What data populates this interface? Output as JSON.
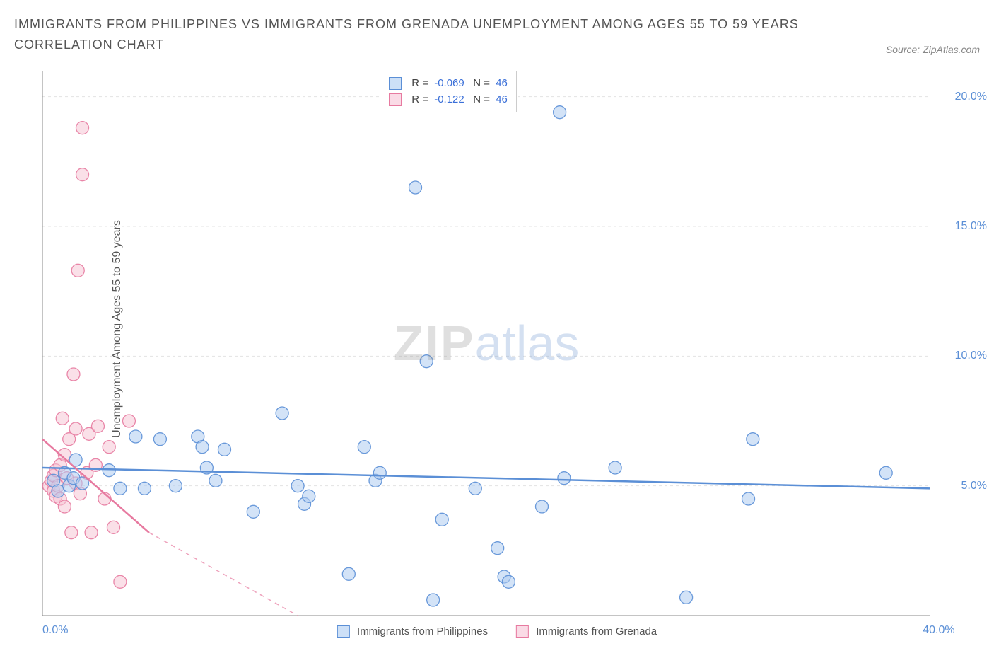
{
  "title": "IMMIGRANTS FROM PHILIPPINES VS IMMIGRANTS FROM GRENADA UNEMPLOYMENT AMONG AGES 55 TO 59 YEARS CORRELATION CHART",
  "source": "Source: ZipAtlas.com",
  "watermark_zip": "ZIP",
  "watermark_atlas": "atlas",
  "chart": {
    "type": "scatter",
    "background_color": "#ffffff",
    "grid_color": "#e3e3e3",
    "axis_color": "#888888",
    "tick_label_color": "#5b8fd6",
    "y_axis_label": "Unemployment Among Ages 55 to 59 years",
    "y_axis_label_color": "#555555",
    "xlim": [
      0,
      40
    ],
    "ylim": [
      0,
      21
    ],
    "x_ticks": [
      0,
      40
    ],
    "x_tick_labels": [
      "0.0%",
      "40.0%"
    ],
    "y_ticks": [
      5,
      10,
      15,
      20
    ],
    "y_tick_labels": [
      "5.0%",
      "10.0%",
      "15.0%",
      "20.0%"
    ],
    "marker_radius": 9,
    "marker_opacity": 0.55,
    "trend_line_width": 2.5,
    "series": [
      {
        "name": "Immigrants from Philippines",
        "color_fill": "#aeccf1",
        "color_stroke": "#5b8fd6",
        "legend_swatch_fill": "#cde0f7",
        "legend_swatch_stroke": "#5b8fd6",
        "R": "-0.069",
        "N": "46",
        "trend": {
          "x1": 0,
          "y1": 5.7,
          "x2": 40,
          "y2": 4.9,
          "dash": "none"
        },
        "points": [
          [
            0.5,
            5.2
          ],
          [
            0.7,
            4.8
          ],
          [
            1.0,
            5.5
          ],
          [
            1.2,
            5.0
          ],
          [
            1.4,
            5.3
          ],
          [
            1.5,
            6.0
          ],
          [
            1.8,
            5.1
          ],
          [
            3.0,
            5.6
          ],
          [
            3.5,
            4.9
          ],
          [
            4.2,
            6.9
          ],
          [
            4.6,
            4.9
          ],
          [
            5.3,
            6.8
          ],
          [
            6.0,
            5.0
          ],
          [
            7.0,
            6.9
          ],
          [
            7.2,
            6.5
          ],
          [
            7.4,
            5.7
          ],
          [
            7.8,
            5.2
          ],
          [
            8.2,
            6.4
          ],
          [
            9.5,
            4.0
          ],
          [
            10.8,
            7.8
          ],
          [
            11.5,
            5.0
          ],
          [
            11.8,
            4.3
          ],
          [
            12.0,
            4.6
          ],
          [
            13.8,
            1.6
          ],
          [
            14.5,
            6.5
          ],
          [
            15.0,
            5.2
          ],
          [
            15.2,
            5.5
          ],
          [
            16.8,
            16.5
          ],
          [
            17.3,
            9.8
          ],
          [
            17.6,
            0.6
          ],
          [
            18.0,
            3.7
          ],
          [
            19.5,
            4.9
          ],
          [
            20.5,
            2.6
          ],
          [
            20.8,
            1.5
          ],
          [
            21.0,
            1.3
          ],
          [
            22.5,
            4.2
          ],
          [
            23.3,
            19.4
          ],
          [
            23.5,
            5.3
          ],
          [
            25.8,
            5.7
          ],
          [
            29.0,
            0.7
          ],
          [
            31.8,
            4.5
          ],
          [
            32.0,
            6.8
          ],
          [
            38.0,
            5.5
          ]
        ]
      },
      {
        "name": "Immigrants from Grenada",
        "color_fill": "#f6c6d6",
        "color_stroke": "#e77aa0",
        "legend_swatch_fill": "#fadbe6",
        "legend_swatch_stroke": "#e77aa0",
        "R": "-0.122",
        "N": "46",
        "trend_solid": {
          "x1": 0,
          "y1": 6.8,
          "x2": 4.8,
          "y2": 3.2
        },
        "trend_dash": {
          "x1": 4.8,
          "y1": 3.2,
          "x2": 11.5,
          "y2": 0
        },
        "points": [
          [
            0.3,
            5.0
          ],
          [
            0.4,
            5.2
          ],
          [
            0.5,
            4.8
          ],
          [
            0.5,
            5.4
          ],
          [
            0.6,
            4.6
          ],
          [
            0.6,
            5.6
          ],
          [
            0.7,
            5.0
          ],
          [
            0.8,
            4.5
          ],
          [
            0.8,
            5.8
          ],
          [
            0.9,
            7.6
          ],
          [
            1.0,
            6.2
          ],
          [
            1.0,
            4.2
          ],
          [
            1.1,
            5.3
          ],
          [
            1.2,
            6.8
          ],
          [
            1.3,
            3.2
          ],
          [
            1.4,
            9.3
          ],
          [
            1.5,
            5.1
          ],
          [
            1.5,
            7.2
          ],
          [
            1.6,
            13.3
          ],
          [
            1.7,
            4.7
          ],
          [
            1.8,
            18.8
          ],
          [
            1.8,
            17.0
          ],
          [
            2.0,
            5.5
          ],
          [
            2.1,
            7.0
          ],
          [
            2.2,
            3.2
          ],
          [
            2.4,
            5.8
          ],
          [
            2.5,
            7.3
          ],
          [
            2.8,
            4.5
          ],
          [
            3.0,
            6.5
          ],
          [
            3.2,
            3.4
          ],
          [
            3.5,
            1.3
          ],
          [
            3.9,
            7.5
          ]
        ]
      }
    ]
  },
  "top_legend": {
    "r_label": "R =",
    "n_label": "N ="
  },
  "bottom_legend_labels": [
    "Immigrants from Philippines",
    "Immigrants from Grenada"
  ]
}
